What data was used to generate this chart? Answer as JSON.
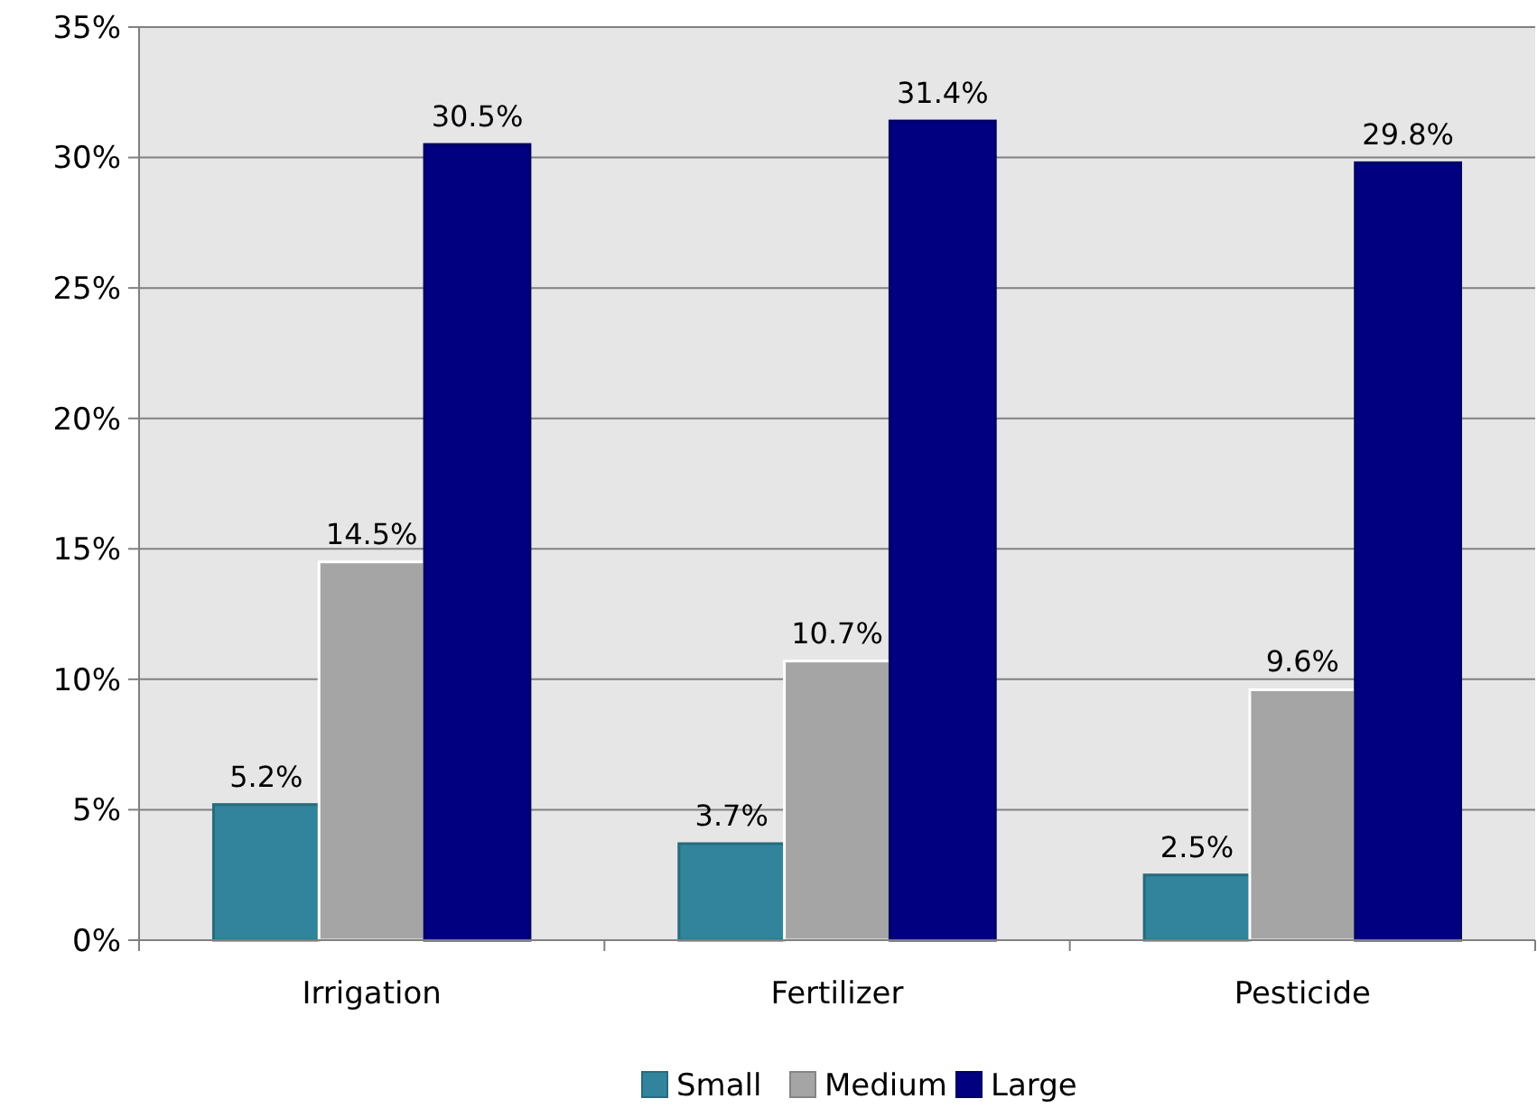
{
  "chart_data": {
    "type": "bar",
    "categories": [
      "Irrigation",
      "Fertilizer",
      "Pesticide"
    ],
    "series": [
      {
        "name": "Small",
        "color": "#31849b",
        "values": [
          5.2,
          3.7,
          2.5
        ],
        "value_labels": [
          "5.2%",
          "3.7%",
          "2.5%"
        ]
      },
      {
        "name": "Medium",
        "color": "#a5a5a5",
        "values": [
          14.5,
          10.7,
          9.6
        ],
        "value_labels": [
          "14.5%",
          "10.7%",
          "9.6%"
        ]
      },
      {
        "name": "Large",
        "color": "#000080",
        "values": [
          30.5,
          31.4,
          29.8
        ],
        "value_labels": [
          "30.5%",
          "31.4%",
          "29.8%"
        ]
      }
    ],
    "ylim": [
      0,
      35
    ],
    "yticks": [
      {
        "value": 0,
        "label": "0%"
      },
      {
        "value": 5,
        "label": "5%"
      },
      {
        "value": 10,
        "label": "10%"
      },
      {
        "value": 15,
        "label": "15%"
      },
      {
        "value": 20,
        "label": "20%"
      },
      {
        "value": 25,
        "label": "25%"
      },
      {
        "value": 30,
        "label": "30%"
      },
      {
        "value": 35,
        "label": "35%"
      }
    ],
    "grid": "y",
    "legend": "bottom"
  }
}
